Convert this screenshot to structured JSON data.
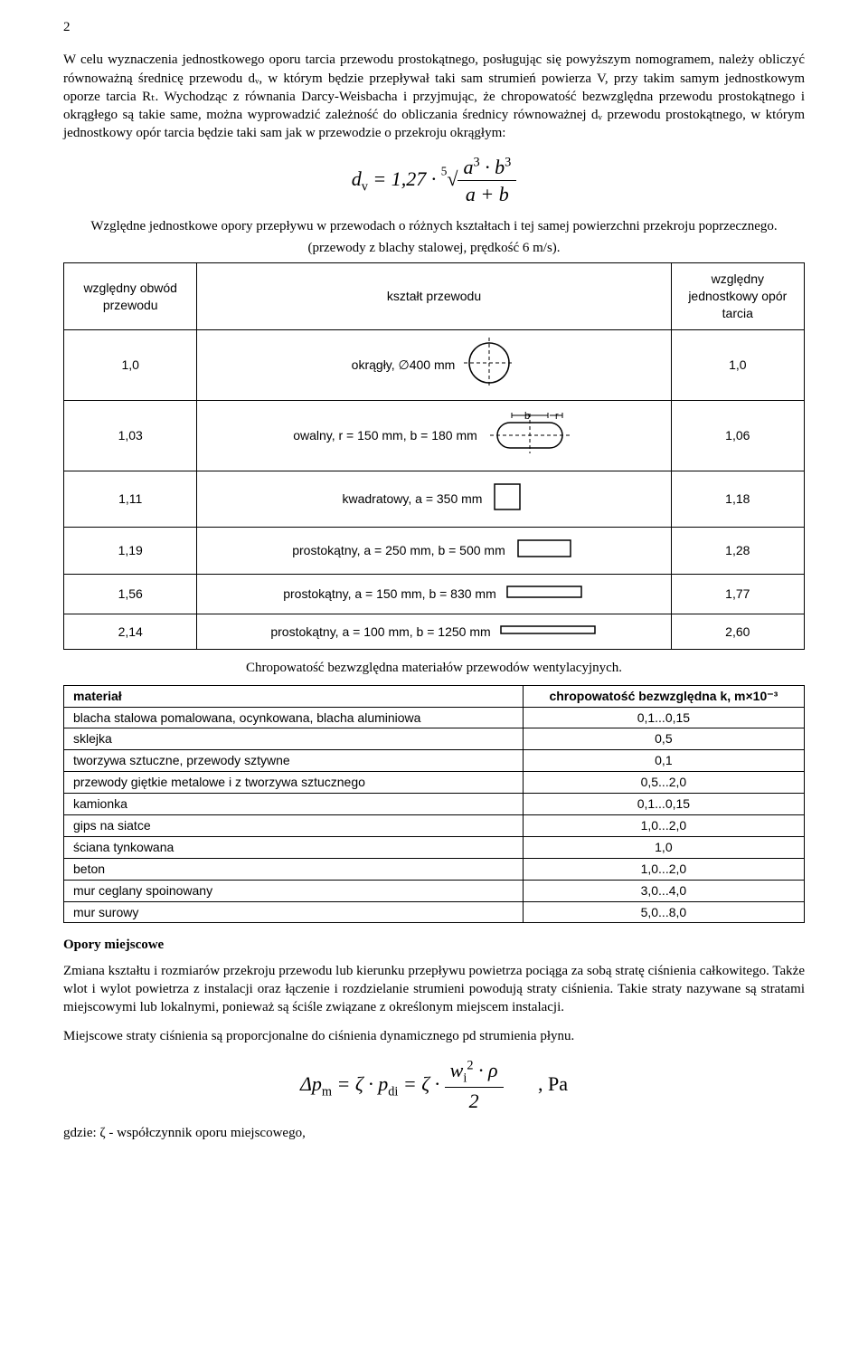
{
  "page_number": "2",
  "para1": "W celu wyznaczenia jednostkowego oporu tarcia przewodu prostokątnego, posługując się powyższym nomogramem, należy obliczyć równoważną średnicę przewodu dᵥ, w którym będzie przepływał taki sam strumień powierza V, przy takim samym jednostkowym oporze tarcia Rₜ. Wychodząc z równania Darcy-Weisbacha i przyjmując, że chropowatość bezwzględna przewodu prostokątnego i okrągłego są takie same, można wyprowadzić zależność do obliczania średnicy równoważnej dᵥ przewodu prostokątnego, w którym jednostkowy opór tarcia będzie taki sam jak w przewodzie o przekroju okrągłym:",
  "caption1a": "Względne jednostkowe opory przepływu w przewodach o różnych kształtach i tej samej powierzchni przekroju poprzecznego.",
  "caption1b": "(przewody z blachy stalowej, prędkość 6 m/s).",
  "shapes_table": {
    "headers": [
      "względny obwód przewodu",
      "kształt przewodu",
      "względny jednostkowy opór tarcia"
    ],
    "rows": [
      {
        "perim": "1,0",
        "label": "okrągły, ∅400 mm",
        "shape": "circle",
        "friction": "1,0"
      },
      {
        "perim": "1,03",
        "label": "owalny, r = 150 mm, b = 180 mm",
        "shape": "oval",
        "friction": "1,06"
      },
      {
        "perim": "1,11",
        "label": "kwadratowy, a = 350 mm",
        "shape": "square",
        "friction": "1,18"
      },
      {
        "perim": "1,19",
        "label": "prostokątny, a = 250 mm, b = 500 mm",
        "shape": "rect1",
        "friction": "1,28"
      },
      {
        "perim": "1,56",
        "label": "prostokątny, a = 150 mm, b = 830 mm",
        "shape": "rect2",
        "friction": "1,77"
      },
      {
        "perim": "2,14",
        "label": "prostokątny, a = 100 mm, b = 1250 mm",
        "shape": "rect3",
        "friction": "2,60"
      }
    ]
  },
  "caption2": "Chropowatość bezwzględna materiałów przewodów wentylacyjnych.",
  "rough_table": {
    "headers": [
      "materiał",
      "chropowatość bezwzględna k, m×10⁻³"
    ],
    "rows": [
      [
        "blacha stalowa pomalowana, ocynkowana, blacha aluminiowa",
        "0,1...0,15"
      ],
      [
        "sklejka",
        "0,5"
      ],
      [
        "tworzywa sztuczne, przewody sztywne",
        "0,1"
      ],
      [
        "przewody giętkie metalowe i z tworzywa sztucznego",
        "0,5...2,0"
      ],
      [
        "kamionka",
        "0,1...0,15"
      ],
      [
        "gips na siatce",
        "1,0...2,0"
      ],
      [
        "ściana tynkowana",
        "1,0"
      ],
      [
        "beton",
        "1,0...2,0"
      ],
      [
        "mur ceglany spoinowany",
        "3,0...4,0"
      ],
      [
        "mur surowy",
        "5,0...8,0"
      ]
    ]
  },
  "section2_title": "Opory miejscowe",
  "para2": "Zmiana kształtu i rozmiarów przekroju przewodu lub kierunku przepływu powietrza pociąga za sobą stratę ciśnienia całkowitego. Także wlot i wylot powietrza z instalacji oraz łączenie i rozdzielanie strumieni powodują straty ciśnienia. Takie straty nazywane są stratami miejscowymi lub lokalnymi, ponieważ są ściśle związane z określonym miejscem instalacji.",
  "para3": "Miejscowe straty ciśnienia są proporcjonalne do ciśnienia dynamicznego pd strumienia płynu.",
  "formula2_suffix": ", Pa",
  "where": "gdzie: ζ - współczynnik oporu miejscowego,"
}
